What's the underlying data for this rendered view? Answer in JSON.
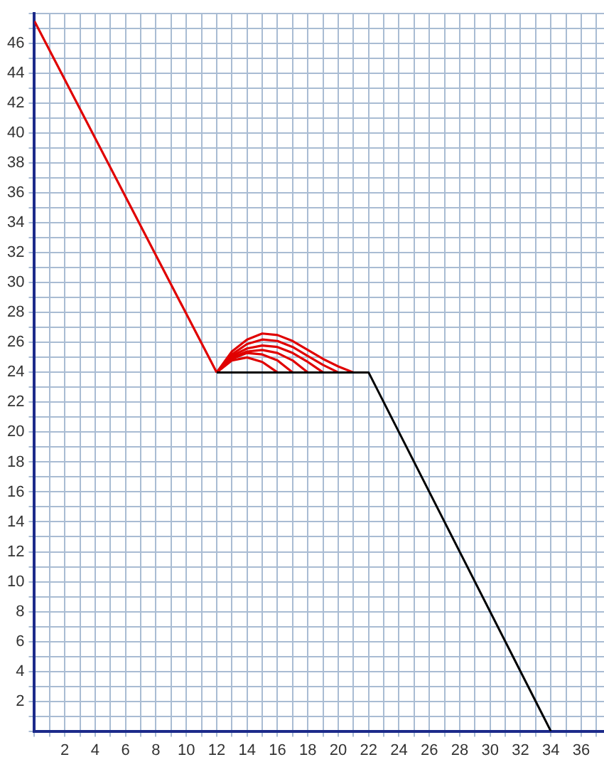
{
  "chart_data": {
    "type": "line",
    "legend": false,
    "grid": true,
    "marker": "none",
    "line_style": "solid",
    "xlim": [
      0,
      37.5
    ],
    "ylim": [
      0,
      48
    ],
    "xticks": [
      {
        "value": 0,
        "label": null
      },
      {
        "value": 1,
        "label": null
      },
      2,
      {
        "value": 3,
        "label": null
      },
      4,
      {
        "value": 5,
        "label": null
      },
      6,
      {
        "value": 7,
        "label": null
      },
      8,
      {
        "value": 9,
        "label": null
      },
      10,
      {
        "value": 11,
        "label": null
      },
      12,
      {
        "value": 13,
        "label": null
      },
      14,
      {
        "value": 15,
        "label": null
      },
      16,
      {
        "value": 17,
        "label": null
      },
      18,
      {
        "value": 19,
        "label": null
      },
      20,
      {
        "value": 21,
        "label": null
      },
      22,
      {
        "value": 23,
        "label": null
      },
      24,
      {
        "value": 25,
        "label": null
      },
      26,
      {
        "value": 27,
        "label": null
      },
      28,
      {
        "value": 29,
        "label": null
      },
      30,
      {
        "value": 31,
        "label": null
      },
      32,
      {
        "value": 33,
        "label": null
      },
      34,
      {
        "value": 35,
        "label": null
      },
      36,
      {
        "value": 37,
        "label": null
      }
    ],
    "yticks": [
      {
        "value": 0,
        "label": null
      },
      {
        "value": 1,
        "label": null
      },
      2,
      {
        "value": 3,
        "label": null
      },
      4,
      {
        "value": 5,
        "label": null
      },
      6,
      {
        "value": 7,
        "label": null
      },
      8,
      {
        "value": 9,
        "label": null
      },
      10,
      {
        "value": 11,
        "label": null
      },
      12,
      {
        "value": 13,
        "label": null
      },
      14,
      {
        "value": 15,
        "label": null
      },
      16,
      {
        "value": 17,
        "label": null
      },
      18,
      {
        "value": 19,
        "label": null
      },
      20,
      {
        "value": 21,
        "label": null
      },
      22,
      {
        "value": 23,
        "label": null
      },
      24,
      {
        "value": 25,
        "label": null
      },
      26,
      {
        "value": 27,
        "label": null
      },
      28,
      {
        "value": 29,
        "label": null
      },
      30,
      {
        "value": 31,
        "label": null
      },
      32,
      {
        "value": 33,
        "label": null
      },
      34,
      {
        "value": 35,
        "label": null
      },
      36,
      {
        "value": 37,
        "label": null
      },
      38,
      {
        "value": 39,
        "label": null
      },
      40,
      {
        "value": 41,
        "label": null
      },
      42,
      {
        "value": 43,
        "label": null
      },
      44,
      {
        "value": 45,
        "label": null
      },
      46,
      {
        "value": 47,
        "label": null
      },
      {
        "value": 48,
        "label": null
      }
    ],
    "series": [
      {
        "color": "#000000",
        "x": [
          12,
          22,
          34
        ],
        "values": [
          24,
          24,
          0
        ]
      },
      {
        "color": "#e00000",
        "x": [
          0,
          12
        ],
        "values": [
          47.5,
          24
        ]
      },
      {
        "color": "#e00000",
        "x": [
          12,
          13,
          14,
          15,
          16,
          17,
          18,
          19,
          20,
          21
        ],
        "values": [
          24,
          25.4,
          26.2,
          26.6,
          26.5,
          26.1,
          25.5,
          24.9,
          24.4,
          24
        ]
      },
      {
        "color": "#e00000",
        "x": [
          12,
          13,
          14,
          15,
          16,
          17,
          18,
          19,
          20
        ],
        "values": [
          24,
          25.2,
          25.9,
          26.2,
          26.1,
          25.7,
          25.1,
          24.5,
          24
        ]
      },
      {
        "color": "#e00000",
        "x": [
          12,
          13,
          14,
          15,
          16,
          17,
          18,
          19
        ],
        "values": [
          24,
          25.1,
          25.6,
          25.8,
          25.7,
          25.3,
          24.7,
          24
        ]
      },
      {
        "color": "#e00000",
        "x": [
          12,
          13,
          14,
          15,
          16,
          17,
          18
        ],
        "values": [
          24,
          25,
          25.4,
          25.5,
          25.3,
          24.8,
          24
        ]
      },
      {
        "color": "#e00000",
        "x": [
          12,
          13,
          14,
          15,
          16,
          17
        ],
        "values": [
          24,
          24.9,
          25.3,
          25.2,
          24.8,
          24
        ]
      },
      {
        "color": "#e00000",
        "x": [
          12,
          13,
          14,
          15,
          16
        ],
        "values": [
          24,
          24.8,
          25,
          24.7,
          24
        ]
      }
    ]
  }
}
